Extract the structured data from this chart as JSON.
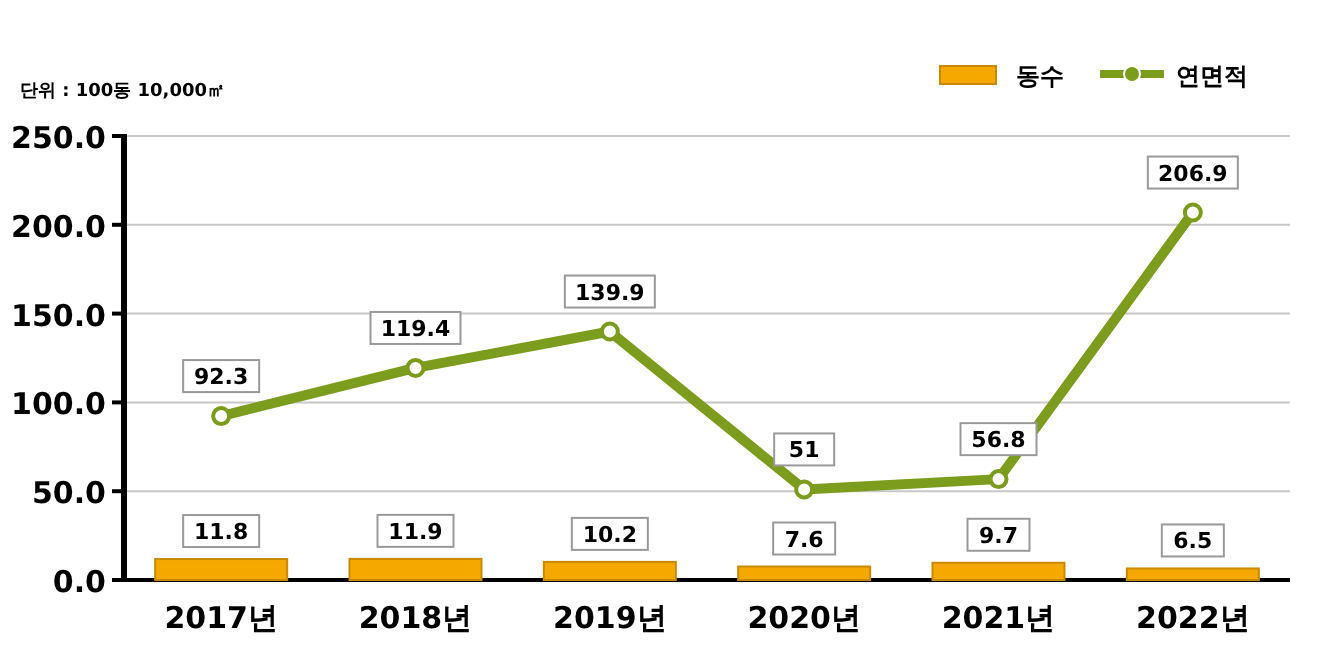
{
  "chart_data": {
    "type": "bar",
    "categories": [
      "2017년",
      "2018년",
      "2019년",
      "2020년",
      "2021년",
      "2022년"
    ],
    "series": [
      {
        "name": "동수",
        "color": "#f5a800",
        "values": [
          11.8,
          11.9,
          10.2,
          7.6,
          9.7,
          6.5
        ]
      },
      {
        "name": "연면적",
        "type": "line",
        "color": "#7b9c1c",
        "marker": "circle",
        "values": [
          92.3,
          119.4,
          139.9,
          51,
          56.8,
          206.9
        ]
      }
    ],
    "ylim": [
      0,
      250
    ],
    "yticks": [
      {
        "value": 0,
        "label": "0.0"
      },
      {
        "value": 50,
        "label": "50.0"
      },
      {
        "value": 100,
        "label": "100.0"
      },
      {
        "value": 150,
        "label": "150.0"
      },
      {
        "value": 200,
        "label": "200.0"
      },
      {
        "value": 250,
        "label": "250.0"
      }
    ],
    "grid": "y",
    "legend": "top right",
    "data_labels": true,
    "annotations": [
      "단위 : 100동 10,000㎡"
    ]
  }
}
